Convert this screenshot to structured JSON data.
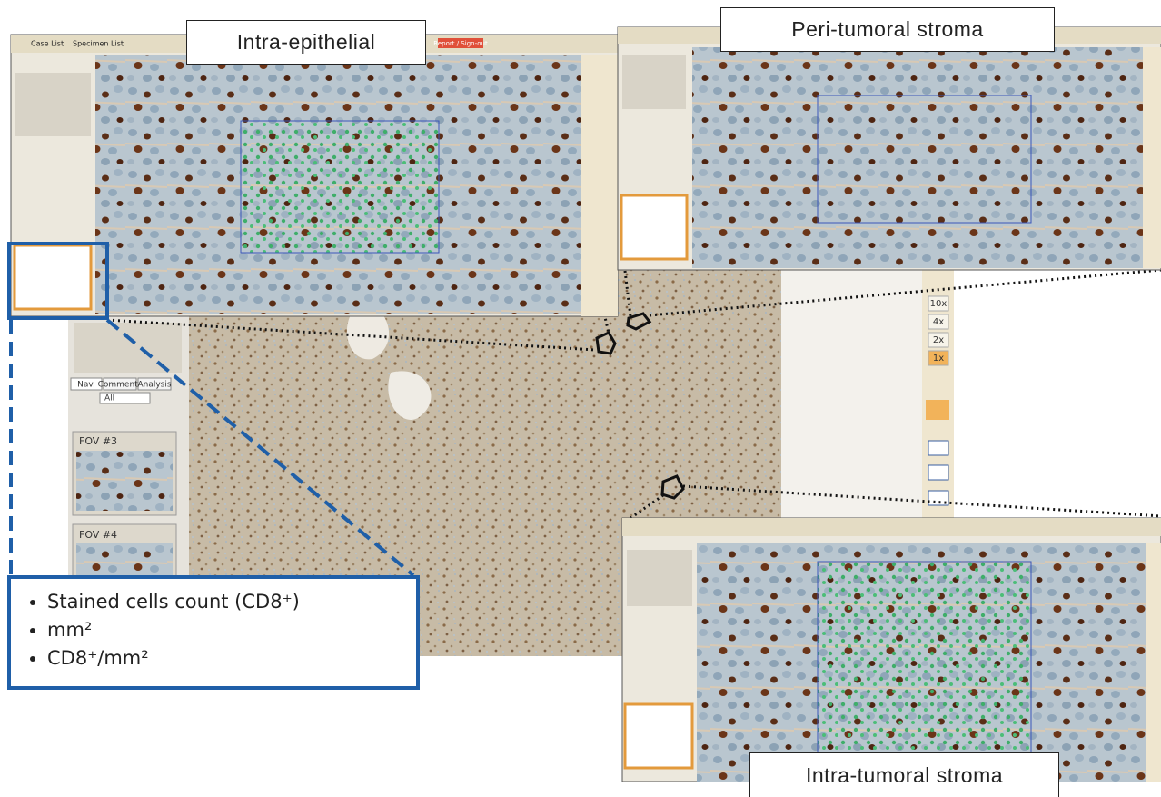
{
  "panels": {
    "top_left": {
      "label": "Intra-epithelial"
    },
    "top_right": {
      "label": "Peri-tumoral stroma"
    },
    "bottom_right": {
      "label": "Intra-tumoral stroma"
    }
  },
  "bullets": [
    "Stained cells count (CD8⁺)",
    "mm²",
    "CD8⁺/mm²"
  ],
  "toolbar": {
    "case_list": "Case List",
    "specimen_list": "Specimen List",
    "report": "Report / Sign-out"
  },
  "viewer": {
    "tabs": [
      "Nav.",
      "Comments",
      "Analysis"
    ],
    "filter": "All",
    "fov": [
      "FOV #3",
      "FOV #4"
    ],
    "zoom": [
      "10x",
      "4x",
      "2x",
      "1x"
    ]
  }
}
